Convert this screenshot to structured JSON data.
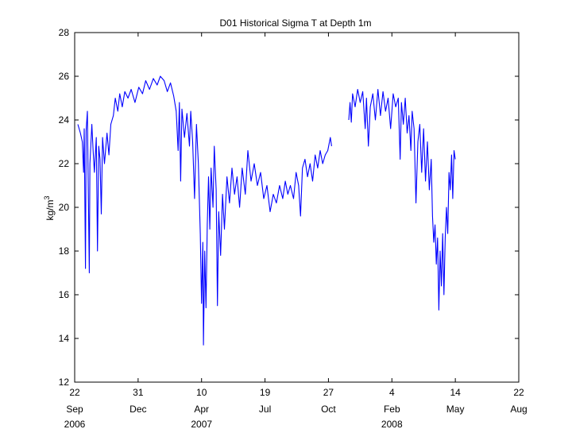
{
  "chart_data": {
    "type": "line",
    "title": "D01 Historical Sigma T at Depth 1m",
    "ylabel": "kg/m",
    "ylabel_superscript": "3",
    "ylim": [
      12,
      28
    ],
    "yticks": [
      12,
      14,
      16,
      18,
      20,
      22,
      24,
      26,
      28
    ],
    "xlim": [
      "2006-09-22",
      "2008-08-22"
    ],
    "xticks": [
      {
        "date": "2006-09-22",
        "day": "22",
        "month": "Sep",
        "year": "2006"
      },
      {
        "date": "2006-12-31",
        "day": "31",
        "month": "Dec",
        "year": ""
      },
      {
        "date": "2007-04-10",
        "day": "10",
        "month": "Apr",
        "year": "2007"
      },
      {
        "date": "2007-07-19",
        "day": "19",
        "month": "Jul",
        "year": ""
      },
      {
        "date": "2007-10-27",
        "day": "27",
        "month": "Oct",
        "year": ""
      },
      {
        "date": "2008-02-04",
        "day": "4",
        "month": "Feb",
        "year": "2008"
      },
      {
        "date": "2008-05-14",
        "day": "14",
        "month": "May",
        "year": ""
      },
      {
        "date": "2008-08-22",
        "day": "22",
        "month": "Aug",
        "year": ""
      }
    ],
    "grid": false,
    "line_color": "#0000ff",
    "series": [
      {
        "segments": [
          [
            [
              "2006-09-27",
              23.8
            ],
            [
              "2006-10-01",
              23.4
            ],
            [
              "2006-10-04",
              23.0
            ],
            [
              "2006-10-06",
              21.6
            ],
            [
              "2006-10-07",
              23.6
            ],
            [
              "2006-10-09",
              17.2
            ],
            [
              "2006-10-10",
              23.5
            ],
            [
              "2006-10-12",
              24.4
            ],
            [
              "2006-10-13",
              21.8
            ],
            [
              "2006-10-15",
              17.0
            ],
            [
              "2006-10-16",
              22.0
            ],
            [
              "2006-10-19",
              23.8
            ],
            [
              "2006-10-21",
              22.6
            ],
            [
              "2006-10-23",
              21.6
            ],
            [
              "2006-10-26",
              23.2
            ],
            [
              "2006-10-28",
              18.0
            ],
            [
              "2006-10-30",
              22.8
            ],
            [
              "2006-11-01",
              22.2
            ],
            [
              "2006-11-03",
              19.7
            ],
            [
              "2006-11-05",
              23.2
            ],
            [
              "2006-11-08",
              22.0
            ],
            [
              "2006-11-12",
              23.4
            ],
            [
              "2006-11-15",
              22.4
            ],
            [
              "2006-11-18",
              23.8
            ],
            [
              "2006-11-22",
              24.2
            ],
            [
              "2006-11-25",
              25.0
            ],
            [
              "2006-11-29",
              24.4
            ],
            [
              "2006-12-02",
              25.2
            ],
            [
              "2006-12-06",
              24.6
            ],
            [
              "2006-12-10",
              25.3
            ],
            [
              "2006-12-15",
              25.0
            ],
            [
              "2006-12-20",
              25.4
            ],
            [
              "2006-12-26",
              24.8
            ],
            [
              "2007-01-01",
              25.5
            ],
            [
              "2007-01-07",
              25.2
            ],
            [
              "2007-01-12",
              25.8
            ],
            [
              "2007-01-18",
              25.4
            ],
            [
              "2007-01-24",
              25.9
            ],
            [
              "2007-01-30",
              25.6
            ],
            [
              "2007-02-04",
              26.0
            ],
            [
              "2007-02-10",
              25.8
            ],
            [
              "2007-02-15",
              25.3
            ],
            [
              "2007-02-20",
              25.7
            ],
            [
              "2007-02-25",
              25.1
            ],
            [
              "2007-03-01",
              24.4
            ],
            [
              "2007-03-04",
              22.6
            ],
            [
              "2007-03-06",
              24.8
            ],
            [
              "2007-03-08",
              21.2
            ],
            [
              "2007-03-10",
              24.5
            ],
            [
              "2007-03-14",
              23.2
            ],
            [
              "2007-03-18",
              24.3
            ],
            [
              "2007-03-22",
              22.8
            ],
            [
              "2007-03-24",
              24.4
            ],
            [
              "2007-03-27",
              23.0
            ],
            [
              "2007-03-30",
              20.4
            ],
            [
              "2007-04-02",
              23.8
            ],
            [
              "2007-04-05",
              22.0
            ],
            [
              "2007-04-08",
              18.8
            ],
            [
              "2007-04-10",
              15.6
            ],
            [
              "2007-04-12",
              18.4
            ],
            [
              "2007-04-13",
              13.7
            ],
            [
              "2007-04-15",
              18.0
            ],
            [
              "2007-04-17",
              15.4
            ],
            [
              "2007-04-19",
              19.2
            ],
            [
              "2007-04-21",
              21.4
            ],
            [
              "2007-04-23",
              19.0
            ],
            [
              "2007-04-25",
              21.8
            ],
            [
              "2007-04-28",
              20.0
            ],
            [
              "2007-04-30",
              22.8
            ],
            [
              "2007-05-03",
              20.8
            ],
            [
              "2007-05-05",
              15.5
            ],
            [
              "2007-05-07",
              19.8
            ],
            [
              "2007-05-10",
              17.8
            ],
            [
              "2007-05-13",
              20.6
            ],
            [
              "2007-05-16",
              19.0
            ],
            [
              "2007-05-20",
              21.4
            ],
            [
              "2007-05-24",
              20.2
            ],
            [
              "2007-05-28",
              21.8
            ],
            [
              "2007-06-01",
              20.6
            ],
            [
              "2007-06-05",
              21.4
            ],
            [
              "2007-06-09",
              20.0
            ],
            [
              "2007-06-13",
              21.8
            ],
            [
              "2007-06-18",
              20.6
            ],
            [
              "2007-06-22",
              22.6
            ],
            [
              "2007-06-27",
              21.2
            ],
            [
              "2007-07-02",
              22.0
            ],
            [
              "2007-07-07",
              21.0
            ],
            [
              "2007-07-12",
              21.6
            ],
            [
              "2007-07-17",
              20.4
            ],
            [
              "2007-07-22",
              21.0
            ],
            [
              "2007-07-27",
              19.8
            ],
            [
              "2007-08-01",
              20.6
            ],
            [
              "2007-08-06",
              20.2
            ],
            [
              "2007-08-11",
              21.0
            ],
            [
              "2007-08-16",
              20.4
            ],
            [
              "2007-08-20",
              21.2
            ],
            [
              "2007-08-24",
              20.6
            ],
            [
              "2007-08-28",
              21.0
            ],
            [
              "2007-09-02",
              20.4
            ],
            [
              "2007-09-06",
              21.6
            ],
            [
              "2007-09-10",
              21.0
            ],
            [
              "2007-09-13",
              19.6
            ],
            [
              "2007-09-16",
              21.8
            ],
            [
              "2007-09-20",
              22.2
            ],
            [
              "2007-09-24",
              21.4
            ],
            [
              "2007-09-28",
              22.0
            ],
            [
              "2007-10-02",
              21.2
            ],
            [
              "2007-10-06",
              22.4
            ],
            [
              "2007-10-10",
              21.8
            ],
            [
              "2007-10-14",
              22.6
            ],
            [
              "2007-10-18",
              22.0
            ],
            [
              "2007-10-22",
              22.4
            ],
            [
              "2007-10-26",
              22.6
            ],
            [
              "2007-10-30",
              23.2
            ],
            [
              "2007-11-01",
              22.8
            ]
          ],
          [
            [
              "2007-11-28",
              24.0
            ],
            [
              "2007-11-30",
              24.8
            ],
            [
              "2007-12-02",
              23.9
            ],
            [
              "2007-12-04",
              25.2
            ],
            [
              "2007-12-08",
              24.6
            ],
            [
              "2007-12-12",
              25.4
            ],
            [
              "2007-12-16",
              24.8
            ],
            [
              "2007-12-20",
              25.3
            ],
            [
              "2007-12-24",
              23.6
            ],
            [
              "2007-12-26",
              25.0
            ],
            [
              "2007-12-29",
              22.8
            ],
            [
              "2008-01-01",
              24.6
            ],
            [
              "2008-01-05",
              25.2
            ],
            [
              "2008-01-09",
              24.0
            ],
            [
              "2008-01-13",
              25.4
            ],
            [
              "2008-01-17",
              24.2
            ],
            [
              "2008-01-21",
              25.3
            ],
            [
              "2008-01-25",
              24.4
            ],
            [
              "2008-01-29",
              25.0
            ],
            [
              "2008-02-02",
              23.6
            ],
            [
              "2008-02-06",
              25.2
            ],
            [
              "2008-02-10",
              24.6
            ],
            [
              "2008-02-14",
              25.0
            ],
            [
              "2008-02-17",
              22.2
            ],
            [
              "2008-02-19",
              24.8
            ],
            [
              "2008-02-22",
              23.8
            ],
            [
              "2008-02-25",
              25.0
            ],
            [
              "2008-02-28",
              23.4
            ],
            [
              "2008-03-02",
              24.2
            ],
            [
              "2008-03-05",
              22.6
            ],
            [
              "2008-03-07",
              24.4
            ],
            [
              "2008-03-10",
              23.6
            ],
            [
              "2008-03-13",
              20.2
            ],
            [
              "2008-03-16",
              23.0
            ],
            [
              "2008-03-19",
              23.8
            ],
            [
              "2008-03-22",
              21.6
            ],
            [
              "2008-03-25",
              23.6
            ],
            [
              "2008-03-28",
              21.2
            ],
            [
              "2008-03-31",
              23.0
            ],
            [
              "2008-04-03",
              20.8
            ],
            [
              "2008-04-06",
              22.2
            ],
            [
              "2008-04-08",
              19.6
            ],
            [
              "2008-04-10",
              18.4
            ],
            [
              "2008-04-12",
              19.2
            ],
            [
              "2008-04-14",
              17.4
            ],
            [
              "2008-04-16",
              18.6
            ],
            [
              "2008-04-18",
              15.3
            ],
            [
              "2008-04-20",
              18.0
            ],
            [
              "2008-04-22",
              16.4
            ],
            [
              "2008-04-24",
              18.8
            ],
            [
              "2008-04-26",
              16.0
            ],
            [
              "2008-04-28",
              18.6
            ],
            [
              "2008-04-30",
              20.0
            ],
            [
              "2008-05-02",
              18.8
            ],
            [
              "2008-05-04",
              21.6
            ],
            [
              "2008-05-06",
              20.8
            ],
            [
              "2008-05-08",
              22.4
            ],
            [
              "2008-05-10",
              20.4
            ],
            [
              "2008-05-12",
              22.6
            ],
            [
              "2008-05-14",
              22.2
            ]
          ]
        ]
      }
    ]
  }
}
